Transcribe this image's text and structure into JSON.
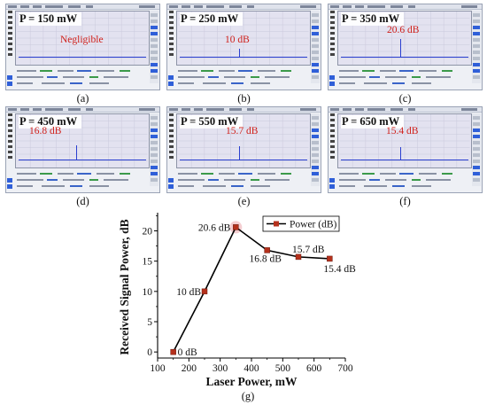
{
  "panels": [
    {
      "power": "P = 150 mW",
      "annotation": "Negligible",
      "caption": "(a)"
    },
    {
      "power": "P = 250 mW",
      "annotation": "10 dB",
      "caption": "(b)"
    },
    {
      "power": "P = 350 mW",
      "annotation": "20.6 dB",
      "caption": "(c)"
    },
    {
      "power": "P = 450 mW",
      "annotation": "16.8 dB",
      "caption": "(d)"
    },
    {
      "power": "P = 550 mW",
      "annotation": "15.7 dB",
      "caption": "(e)"
    },
    {
      "power": "P = 650 mW",
      "annotation": "15.4 dB",
      "caption": "(f)"
    }
  ],
  "colors": {
    "marker": "#b5311c",
    "line": "#000000",
    "annotation": "#d0201a",
    "trace": "#2a3fd0",
    "highlight": "#f3c9cc"
  },
  "chart_data": {
    "type": "line",
    "caption": "(g)",
    "xlabel": "Laser Power, mW",
    "ylabel": "Received Signal Power, dB",
    "xlim": [
      100,
      700
    ],
    "ylim": [
      -1,
      23
    ],
    "x_ticks": [
      "100",
      "200",
      "300",
      "400",
      "500",
      "600",
      "700"
    ],
    "y_ticks": [
      "0",
      "5",
      "10",
      "15",
      "20"
    ],
    "legend_position": "top-right",
    "series": [
      {
        "name": "Power (dB)",
        "x": [
          150,
          250,
          350,
          450,
          550,
          650
        ],
        "y": [
          0,
          10,
          20.6,
          16.8,
          15.7,
          15.4
        ],
        "labels": [
          "0 dB",
          "10 dB",
          "20.6 dB",
          "16.8 dB",
          "15.7 dB",
          "15.4 dB"
        ]
      }
    ]
  }
}
